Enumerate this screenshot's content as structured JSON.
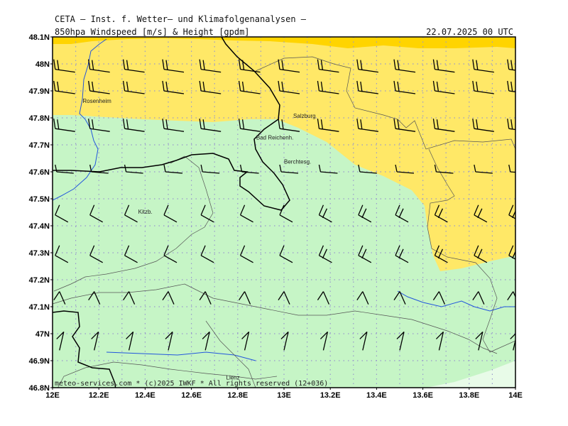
{
  "header": {
    "title": "CETA — Inst. f. Wetter— und Klimafolgenanalysen —",
    "subtitle": "850hpa Windspeed [m/s] & Height [gpdm]",
    "date": "22.07.2025 00 UTC"
  },
  "credit": "meteo-services.com * (c)2025 IWKF * All rights reserved (12+036)",
  "axes": {
    "lat_labels": [
      "48.1N",
      "48N",
      "47.9N",
      "47.8N",
      "47.7N",
      "47.6N",
      "47.5N",
      "47.4N",
      "47.3N",
      "47.2N",
      "47.1N",
      "47N",
      "46.9N",
      "46.8N"
    ],
    "lon_labels": [
      "12E",
      "12.2E",
      "12.4E",
      "12.6E",
      "12.8E",
      "13E",
      "13.2E",
      "13.4E",
      "13.6E",
      "13.8E",
      "14E"
    ]
  },
  "cities": [
    {
      "name": "Rosenheim",
      "lon": 12.13,
      "lat": 47.855
    },
    {
      "name": "Salzburg",
      "lon": 13.04,
      "lat": 47.8
    },
    {
      "name": "Bad Reichenh.",
      "lon": 12.88,
      "lat": 47.72
    },
    {
      "name": "Berchtesg.",
      "lon": 13.0,
      "lat": 47.63
    },
    {
      "name": "Kitzb.",
      "lon": 12.37,
      "lat": 47.445
    },
    {
      "name": "Lienz",
      "lon": 12.75,
      "lat": 46.83
    }
  ],
  "colors": {
    "light_green": "#c6f5c6",
    "yellow": "#ffe867",
    "dark_yellow": "#ffd400",
    "pale_green": "#e8fbe8",
    "grid": "#9999cc",
    "river": "#2255dd",
    "border": "#000000",
    "admin": "#555555"
  }
}
